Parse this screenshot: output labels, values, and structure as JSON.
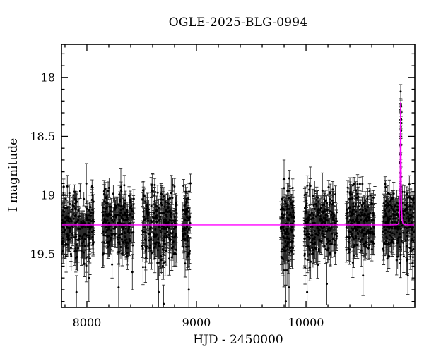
{
  "title": "OGLE-2025-BLG-0994",
  "axes": {
    "x_label": "HJD - 2450000",
    "y_label": "I magnitude"
  },
  "chart_data": {
    "type": "scatter",
    "title": "OGLE-2025-BLG-0994",
    "xlabel": "HJD - 2450000",
    "ylabel": "I magnitude",
    "x_range": [
      7768,
      10993
    ],
    "y_range": [
      19.95,
      17.72
    ],
    "y_axis_inverted": true,
    "grid": false,
    "legend": null,
    "x_axis": {
      "major_ticks": [
        8000,
        9000,
        10000
      ],
      "major_tick_labels": [
        "8000",
        "9000",
        "10000"
      ],
      "minor_tick_step": 200
    },
    "y_axis": {
      "major_ticks": [
        18,
        18.5,
        19,
        19.5
      ],
      "major_tick_labels": [
        "18",
        "18.5",
        "19",
        "19.5"
      ],
      "minor_tick_step": 0.1
    },
    "marker": {
      "shape": "filled-circle-with-error-bars",
      "color": "#000000",
      "error_bar_color": "#2a2a2a",
      "radius_px": 1.5
    },
    "model_curve": {
      "type": "paczynski-microlensing",
      "color": "#ff00ff",
      "baseline_mag": 19.25,
      "t0": 10864,
      "tE_days": 6.5,
      "u0": 0.405,
      "peak_mag": 18.21
    },
    "baseline_mag": 19.25,
    "seasons": [
      {
        "x_start": 7775,
        "x_end": 8065,
        "n_points": 210,
        "mean_mag": 19.26,
        "sigma_mag": 0.14
      },
      {
        "x_start": 8143,
        "x_end": 8430,
        "n_points": 210,
        "mean_mag": 19.25,
        "sigma_mag": 0.14
      },
      {
        "x_start": 8505,
        "x_end": 8820,
        "n_points": 250,
        "mean_mag": 19.26,
        "sigma_mag": 0.145
      },
      {
        "x_start": 8872,
        "x_end": 8945,
        "n_points": 70,
        "mean_mag": 19.27,
        "sigma_mag": 0.155
      },
      {
        "x_start": 9770,
        "x_end": 9890,
        "n_points": 130,
        "mean_mag": 19.24,
        "sigma_mag": 0.165
      },
      {
        "x_start": 9985,
        "x_end": 10280,
        "n_points": 240,
        "mean_mag": 19.25,
        "sigma_mag": 0.15
      },
      {
        "x_start": 10365,
        "x_end": 10630,
        "n_points": 220,
        "mean_mag": 19.24,
        "sigma_mag": 0.14
      },
      {
        "x_start": 10700,
        "x_end": 10985,
        "n_points": 250,
        "mean_mag": 19.24,
        "sigma_mag": 0.14
      }
    ],
    "outlier_points": [
      {
        "x": 7995,
        "mag": 18.9,
        "err": 0.17
      },
      {
        "x": 7905,
        "mag": 19.82,
        "err": 0.14
      },
      {
        "x": 8018,
        "mag": 19.7,
        "err": 0.2
      },
      {
        "x": 8310,
        "mag": 18.93,
        "err": 0.16
      },
      {
        "x": 8290,
        "mag": 19.78,
        "err": 0.2
      },
      {
        "x": 8415,
        "mag": 19.65,
        "err": 0.15
      },
      {
        "x": 8602,
        "mag": 18.96,
        "err": 0.14
      },
      {
        "x": 8655,
        "mag": 19.82,
        "err": 0.22
      },
      {
        "x": 8700,
        "mag": 19.92,
        "err": 0.16
      },
      {
        "x": 8770,
        "mag": 18.98,
        "err": 0.15
      },
      {
        "x": 8930,
        "mag": 19.8,
        "err": 0.17
      },
      {
        "x": 9800,
        "mag": 18.86,
        "err": 0.16
      },
      {
        "x": 9845,
        "mag": 19.78,
        "err": 0.2
      },
      {
        "x": 9815,
        "mag": 19.9,
        "err": 0.14
      },
      {
        "x": 10040,
        "mag": 18.92,
        "err": 0.16
      },
      {
        "x": 10010,
        "mag": 19.82,
        "err": 0.2
      },
      {
        "x": 10150,
        "mag": 18.96,
        "err": 0.15
      },
      {
        "x": 10190,
        "mag": 19.75,
        "err": 0.18
      },
      {
        "x": 10400,
        "mag": 18.98,
        "err": 0.13
      },
      {
        "x": 10520,
        "mag": 19.68,
        "err": 0.17
      },
      {
        "x": 10760,
        "mag": 18.99,
        "err": 0.12
      },
      {
        "x": 10930,
        "mag": 19.68,
        "err": 0.16
      }
    ],
    "event": {
      "t0": 10864,
      "x_spread_days": 8,
      "n_column_points": 26,
      "mag_bright_end": 18.23,
      "mag_faint_end": 19.15,
      "peak_point": {
        "x": 10864,
        "mag": 18.12,
        "err": 0.06
      }
    }
  }
}
